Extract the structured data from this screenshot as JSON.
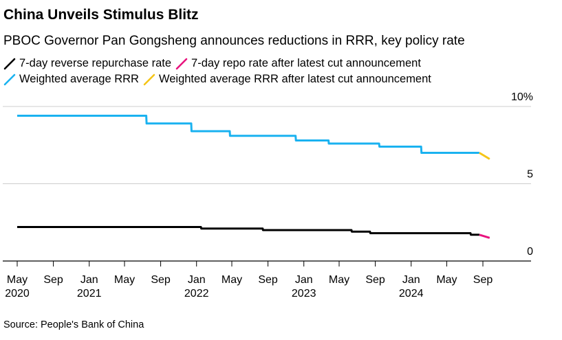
{
  "title": "China Unveils Stimulus Blitz",
  "subtitle": "PBOC Governor Pan Gongsheng announces reductions in RRR, key policy rate",
  "source": "Source: People's Bank of China",
  "legend": [
    {
      "label": "7-day reverse repurchase rate",
      "color": "#000000"
    },
    {
      "label": "7-day repo rate after latest cut announcement",
      "color": "#e8137e"
    },
    {
      "label": "Weighted average RRR",
      "color": "#1ab2f0"
    },
    {
      "label": "Weighted average RRR after latest cut announcement",
      "color": "#f5c518"
    }
  ],
  "chart_data": {
    "type": "line",
    "title": "China Unveils Stimulus Blitz",
    "subtitle": "PBOC Governor Pan Gongsheng announces reductions in RRR, key policy rate",
    "xlabel": "",
    "ylabel": "",
    "ylim": [
      0,
      10
    ],
    "xlim": [
      "2020-04-01",
      "2024-12-31"
    ],
    "y_ticks": [
      {
        "value": 0,
        "label": "0"
      },
      {
        "value": 5,
        "label": "5"
      },
      {
        "value": 10,
        "label": "10%"
      }
    ],
    "x_ticks": [
      {
        "date": "2020-05-01",
        "month": "May",
        "year": "2020"
      },
      {
        "date": "2020-09-01",
        "month": "Sep",
        "year": ""
      },
      {
        "date": "2021-01-01",
        "month": "Jan",
        "year": "2021"
      },
      {
        "date": "2021-05-01",
        "month": "May",
        "year": ""
      },
      {
        "date": "2021-09-01",
        "month": "Sep",
        "year": ""
      },
      {
        "date": "2022-01-01",
        "month": "Jan",
        "year": "2022"
      },
      {
        "date": "2022-05-01",
        "month": "May",
        "year": ""
      },
      {
        "date": "2022-09-01",
        "month": "Sep",
        "year": ""
      },
      {
        "date": "2023-01-01",
        "month": "Jan",
        "year": "2023"
      },
      {
        "date": "2023-05-01",
        "month": "May",
        "year": ""
      },
      {
        "date": "2023-09-01",
        "month": "Sep",
        "year": ""
      },
      {
        "date": "2024-01-01",
        "month": "Jan",
        "year": "2024"
      },
      {
        "date": "2024-05-01",
        "month": "May",
        "year": ""
      },
      {
        "date": "2024-09-01",
        "month": "Sep",
        "year": ""
      }
    ],
    "grid": "horizontal",
    "legend_position": "top-left",
    "series": [
      {
        "name": "Weighted average RRR",
        "color": "#1ab2f0",
        "points": [
          {
            "x": "2020-05-01",
            "y": 9.4
          },
          {
            "x": "2021-07-14",
            "y": 9.4
          },
          {
            "x": "2021-07-15",
            "y": 8.9
          },
          {
            "x": "2021-12-14",
            "y": 8.9
          },
          {
            "x": "2021-12-15",
            "y": 8.4
          },
          {
            "x": "2022-04-24",
            "y": 8.4
          },
          {
            "x": "2022-04-25",
            "y": 8.1
          },
          {
            "x": "2022-12-04",
            "y": 8.1
          },
          {
            "x": "2022-12-05",
            "y": 7.8
          },
          {
            "x": "2023-03-26",
            "y": 7.8
          },
          {
            "x": "2023-03-27",
            "y": 7.6
          },
          {
            "x": "2023-09-14",
            "y": 7.6
          },
          {
            "x": "2023-09-15",
            "y": 7.4
          },
          {
            "x": "2024-02-04",
            "y": 7.4
          },
          {
            "x": "2024-02-05",
            "y": 7.0
          },
          {
            "x": "2024-08-20",
            "y": 7.0
          }
        ]
      },
      {
        "name": "Weighted average RRR after latest cut announcement",
        "color": "#f5c518",
        "points": [
          {
            "x": "2024-08-20",
            "y": 7.0
          },
          {
            "x": "2024-09-24",
            "y": 6.6
          }
        ]
      },
      {
        "name": "7-day reverse repurchase rate",
        "color": "#000000",
        "points": [
          {
            "x": "2020-05-01",
            "y": 2.2
          },
          {
            "x": "2022-01-16",
            "y": 2.2
          },
          {
            "x": "2022-01-17",
            "y": 2.1
          },
          {
            "x": "2022-08-14",
            "y": 2.1
          },
          {
            "x": "2022-08-15",
            "y": 2.0
          },
          {
            "x": "2023-06-12",
            "y": 2.0
          },
          {
            "x": "2023-06-13",
            "y": 1.9
          },
          {
            "x": "2023-08-14",
            "y": 1.9
          },
          {
            "x": "2023-08-15",
            "y": 1.8
          },
          {
            "x": "2024-07-21",
            "y": 1.8
          },
          {
            "x": "2024-07-22",
            "y": 1.7
          },
          {
            "x": "2024-08-20",
            "y": 1.7
          }
        ]
      },
      {
        "name": "7-day repo rate after latest cut announcement",
        "color": "#e8137e",
        "points": [
          {
            "x": "2024-08-20",
            "y": 1.7
          },
          {
            "x": "2024-09-24",
            "y": 1.5
          }
        ]
      }
    ]
  }
}
